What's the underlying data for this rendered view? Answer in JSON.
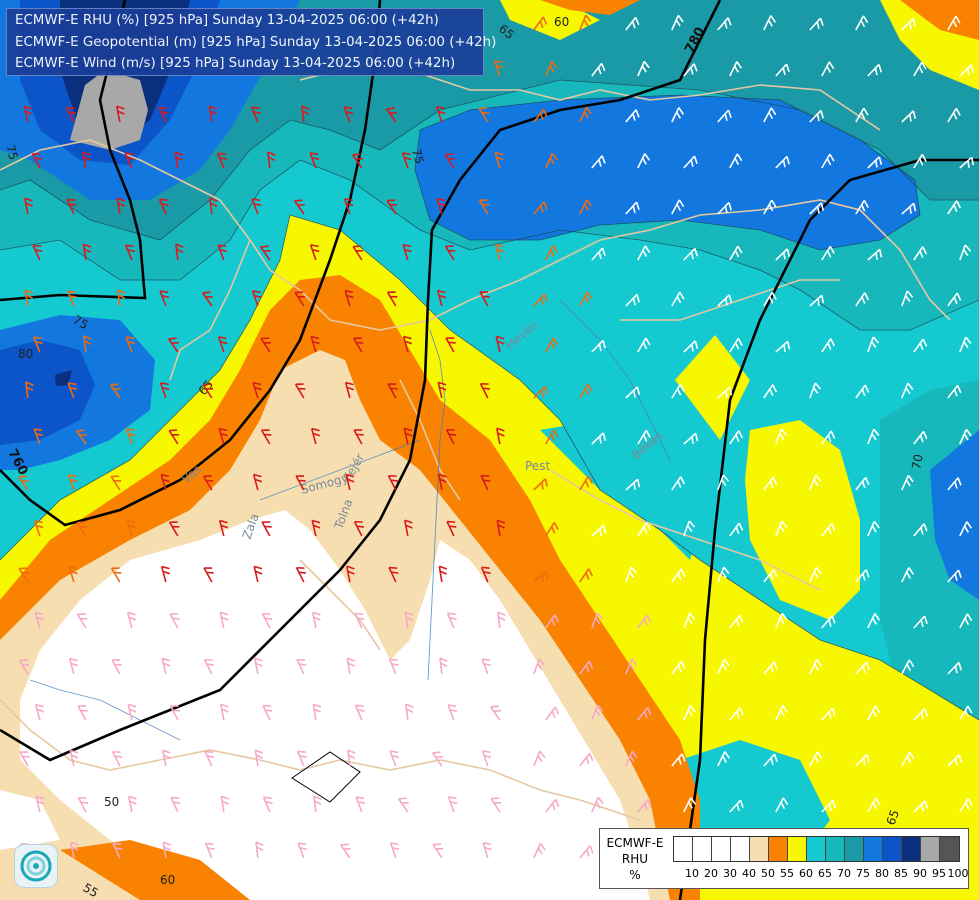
{
  "header": {
    "line1": "ECMWF-E RHU (%) [925 hPa] Sunday 13-04-2025 06:00 (+42h)",
    "line2": "ECMWF-E Geopotential (m) [925 hPa] Sunday 13-04-2025 06:00 (+42h)",
    "line3": "ECMWF-E Wind (m/s) [925 hPa] Sunday 13-04-2025 06:00 (+42h)"
  },
  "legend": {
    "title_lines": [
      "ECMWF-E",
      "RHU",
      "%"
    ],
    "ticks": [
      "10",
      "20",
      "30",
      "40",
      "50",
      "55",
      "60",
      "65",
      "70",
      "75",
      "80",
      "85",
      "90",
      "95",
      "100"
    ],
    "swatches": [
      "#ffffff",
      "#ffffff",
      "#ffffff",
      "#ffffff",
      "#f7deb0",
      "#f98200",
      "#f7f700",
      "#15c9d0",
      "#17b8bc",
      "#1a9aa6",
      "#1278e0",
      "#0c55c9",
      "#0a2f7d",
      "#a8a8a8",
      "#555555"
    ]
  },
  "contour_labels": {
    "rhu": [
      "65",
      "60",
      "75",
      "75",
      "75",
      "80",
      "65",
      "70",
      "65",
      "50",
      "60",
      "55"
    ],
    "geopotential": [
      "780",
      "760"
    ]
  },
  "place_labels": [
    "Heves",
    "Pest",
    "Békés",
    "Vas",
    "Fejér",
    "Somogy",
    "Tolna",
    "Zala"
  ],
  "colors": {
    "rhu_50": "#f7deb0",
    "rhu_55": "#f98200",
    "rhu_60": "#f7f700",
    "rhu_65": "#15c9d0",
    "rhu_70": "#17b8bc",
    "rhu_75": "#1a9aa6",
    "rhu_80": "#1278e0",
    "rhu_85": "#0c55c9",
    "rhu_90": "#0a2f7d",
    "rhu_95": "#a8a8a8",
    "border": "#e6c8a0",
    "isohypse": "#000000"
  },
  "icons": {
    "logo": "ogimet-logo-icon",
    "wind": "wind-barb-icon"
  }
}
